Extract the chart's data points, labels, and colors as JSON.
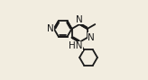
{
  "background_color": "#f2ede0",
  "bond_color": "#1a1a1a",
  "bond_width": 1.3,
  "dbo": 0.013,
  "font_size": 7.5,
  "fig_width": 1.64,
  "fig_height": 0.89,
  "dpi": 100,
  "xlim": [
    0.0,
    1.0
  ],
  "ylim": [
    0.05,
    0.98
  ]
}
